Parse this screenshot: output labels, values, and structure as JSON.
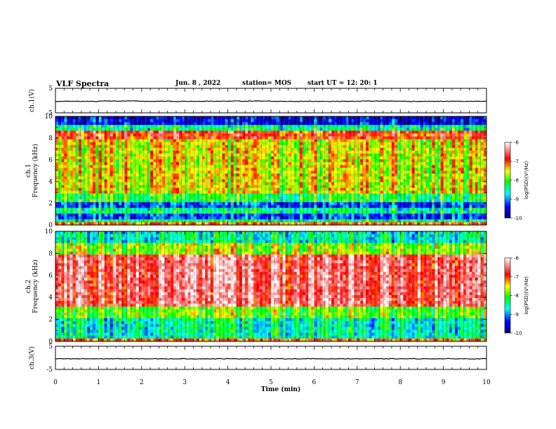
{
  "header": {
    "title": "VLF Spectra",
    "date": "Jun. 8 , 2022",
    "station": "station= MOS",
    "start_ut": "start UT =   12: 20: 1"
  },
  "chart_data": [
    {
      "type": "line",
      "ylabel": "ch.1(V)",
      "ylim": [
        -5,
        5
      ],
      "yticks": [
        "5",
        "-5"
      ],
      "series": [
        {
          "values": [
            -0.3,
            -0.2,
            -0.3,
            -0.3,
            -0.2,
            -0.3,
            -0.3,
            -0.2,
            -0.3,
            -0.3
          ]
        }
      ]
    },
    {
      "type": "heatmap",
      "ylabel": "ch.1\nFrequency (kHz)",
      "ylim": [
        0,
        10
      ],
      "yticks": [
        "0",
        "2",
        "4",
        "6",
        "8",
        "10"
      ],
      "colorbar": {
        "label": "log(PSD)(V²/Hz)",
        "range": [
          -10,
          -6
        ],
        "ticks": [
          "-6",
          "-7",
          "-8",
          "-9",
          "-10"
        ]
      }
    },
    {
      "type": "heatmap",
      "ylabel": "ch.2\nFrequency (kHz)",
      "ylim": [
        0,
        10
      ],
      "yticks": [
        "0",
        "2",
        "4",
        "6",
        "8",
        "10"
      ],
      "colorbar": {
        "label": "log(PSD)(V²/Hz)",
        "range": [
          -10,
          -6
        ],
        "ticks": [
          "-6",
          "-7",
          "-8",
          "-9",
          "-10"
        ]
      }
    },
    {
      "type": "line",
      "ylabel": "ch.3(V)",
      "ylim": [
        -5,
        5
      ],
      "yticks": [
        "5",
        "-5"
      ],
      "series": [
        {
          "values": [
            -0.4,
            -0.4,
            -0.4,
            -0.4,
            -0.4,
            -0.4,
            -0.4,
            -0.4,
            -0.4,
            -0.4
          ]
        }
      ]
    }
  ],
  "x_axis": {
    "label": "Time (min)",
    "xlim": [
      0,
      10
    ],
    "ticks": [
      "0",
      "1",
      "2",
      "3",
      "4",
      "5",
      "6",
      "7",
      "8",
      "9",
      "10"
    ]
  },
  "colors": {
    "colormap": [
      "#000080",
      "#0000ff",
      "#00ffff",
      "#00ff00",
      "#ffff00",
      "#ff0000",
      "#ffffff"
    ]
  }
}
